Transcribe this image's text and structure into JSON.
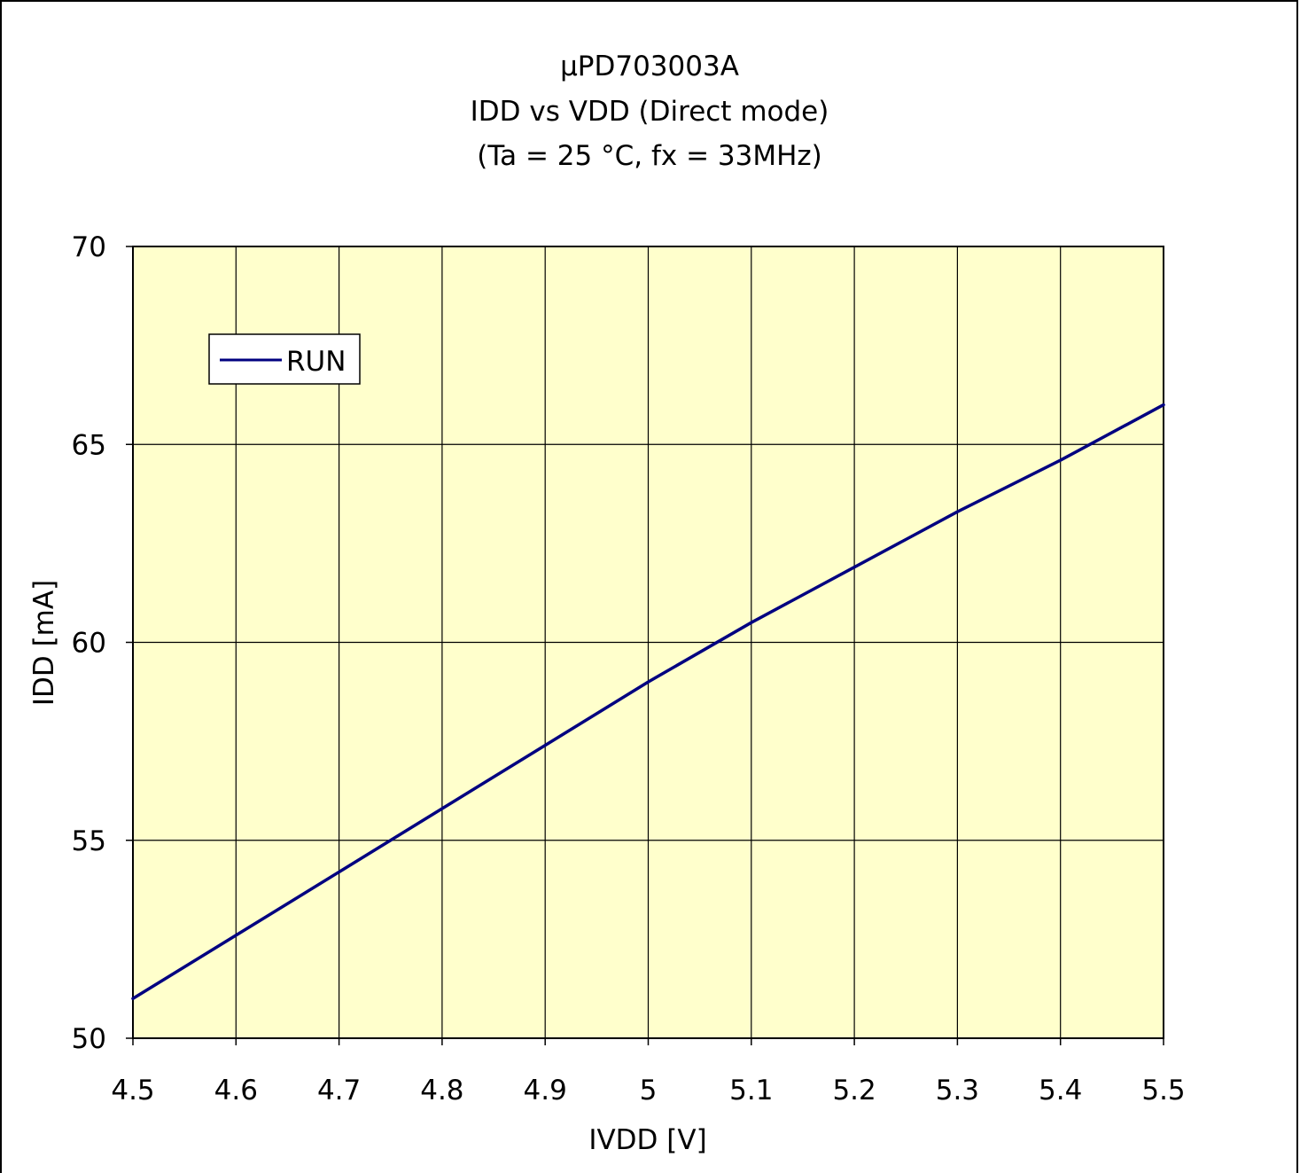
{
  "chart_data": {
    "type": "line",
    "title": [
      "μPD703003A",
      "IDD vs VDD (Direct mode)",
      "(Ta = 25 °C, fx = 33MHz)"
    ],
    "xlabel": "IVDD [V]",
    "ylabel": "IDD [mA]",
    "xlim": [
      4.5,
      5.5
    ],
    "ylim": [
      50,
      70
    ],
    "xticks": [
      "4.5",
      "4.6",
      "4.7",
      "4.8",
      "4.9",
      "5",
      "5.1",
      "5.2",
      "5.3",
      "5.4",
      "5.5"
    ],
    "yticks": [
      "50",
      "55",
      "60",
      "65",
      "70"
    ],
    "grid": true,
    "legend": "top-left",
    "plot_bg": "#ffffcc",
    "series": [
      {
        "name": "RUN",
        "color": "#000080",
        "x": [
          4.5,
          4.6,
          4.7,
          4.8,
          4.9,
          5.0,
          5.1,
          5.2,
          5.3,
          5.4,
          5.5
        ],
        "y": [
          51.0,
          52.6,
          54.2,
          55.8,
          57.4,
          59.0,
          60.5,
          61.9,
          63.3,
          64.6,
          66.0
        ]
      }
    ]
  }
}
